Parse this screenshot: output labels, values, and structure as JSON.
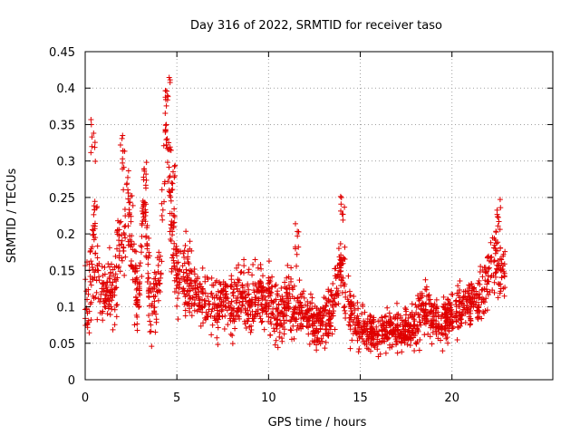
{
  "chart_data": {
    "type": "scatter",
    "title": "Day 316 of 2022, SRMTID for receiver taso",
    "xlabel": "GPS time / hours",
    "ylabel": "SRMTID / TECUs",
    "xlim": [
      0,
      25.5
    ],
    "ylim": [
      0,
      0.45
    ],
    "xticks": [
      0,
      5,
      10,
      15,
      20
    ],
    "yticks": [
      0,
      0.05,
      0.1,
      0.15,
      0.2,
      0.25,
      0.3,
      0.35,
      0.4,
      0.45
    ],
    "grid": true,
    "marker": "+",
    "color": "#e00000",
    "x_range_of_data": [
      0,
      22.9
    ],
    "trend": [
      [
        0.0,
        0.11,
        0.05
      ],
      [
        0.3,
        0.14,
        0.06
      ],
      [
        0.5,
        0.2,
        0.1
      ],
      [
        0.8,
        0.12,
        0.04
      ],
      [
        1.2,
        0.12,
        0.04
      ],
      [
        1.6,
        0.12,
        0.04
      ],
      [
        2.0,
        0.22,
        0.08
      ],
      [
        2.3,
        0.25,
        0.06
      ],
      [
        2.6,
        0.17,
        0.07
      ],
      [
        2.9,
        0.09,
        0.03
      ],
      [
        3.2,
        0.26,
        0.04
      ],
      [
        3.5,
        0.12,
        0.05
      ],
      [
        3.8,
        0.1,
        0.04
      ],
      [
        4.1,
        0.15,
        0.05
      ],
      [
        4.4,
        0.36,
        0.06
      ],
      [
        4.7,
        0.22,
        0.08
      ],
      [
        5.0,
        0.15,
        0.05
      ],
      [
        5.5,
        0.14,
        0.05
      ],
      [
        6.0,
        0.12,
        0.04
      ],
      [
        6.5,
        0.11,
        0.04
      ],
      [
        7.0,
        0.1,
        0.04
      ],
      [
        7.5,
        0.11,
        0.04
      ],
      [
        8.0,
        0.1,
        0.04
      ],
      [
        8.5,
        0.12,
        0.04
      ],
      [
        9.0,
        0.1,
        0.04
      ],
      [
        9.5,
        0.11,
        0.04
      ],
      [
        10.0,
        0.12,
        0.05
      ],
      [
        10.5,
        0.09,
        0.04
      ],
      [
        11.0,
        0.11,
        0.04
      ],
      [
        11.5,
        0.1,
        0.04
      ],
      [
        12.0,
        0.09,
        0.035
      ],
      [
        12.5,
        0.08,
        0.03
      ],
      [
        13.0,
        0.08,
        0.03
      ],
      [
        13.5,
        0.1,
        0.04
      ],
      [
        13.9,
        0.15,
        0.05
      ],
      [
        14.2,
        0.12,
        0.05
      ],
      [
        14.6,
        0.08,
        0.03
      ],
      [
        15.0,
        0.07,
        0.03
      ],
      [
        15.5,
        0.07,
        0.025
      ],
      [
        16.0,
        0.06,
        0.025
      ],
      [
        16.5,
        0.07,
        0.025
      ],
      [
        17.0,
        0.065,
        0.025
      ],
      [
        17.5,
        0.07,
        0.025
      ],
      [
        18.0,
        0.07,
        0.03
      ],
      [
        18.5,
        0.1,
        0.04
      ],
      [
        19.0,
        0.08,
        0.03
      ],
      [
        19.5,
        0.08,
        0.03
      ],
      [
        20.0,
        0.09,
        0.03
      ],
      [
        20.5,
        0.1,
        0.035
      ],
      [
        21.0,
        0.1,
        0.035
      ],
      [
        21.5,
        0.11,
        0.04
      ],
      [
        22.0,
        0.14,
        0.05
      ],
      [
        22.4,
        0.17,
        0.05
      ],
      [
        22.9,
        0.13,
        0.04
      ]
    ],
    "peaks": [
      [
        0.45,
        0.36
      ],
      [
        2.05,
        0.34
      ],
      [
        4.5,
        0.43
      ],
      [
        4.8,
        0.3
      ],
      [
        14.0,
        0.26
      ],
      [
        22.6,
        0.25
      ],
      [
        11.6,
        0.22
      ],
      [
        3.3,
        0.3
      ]
    ],
    "point_count": 2200
  }
}
